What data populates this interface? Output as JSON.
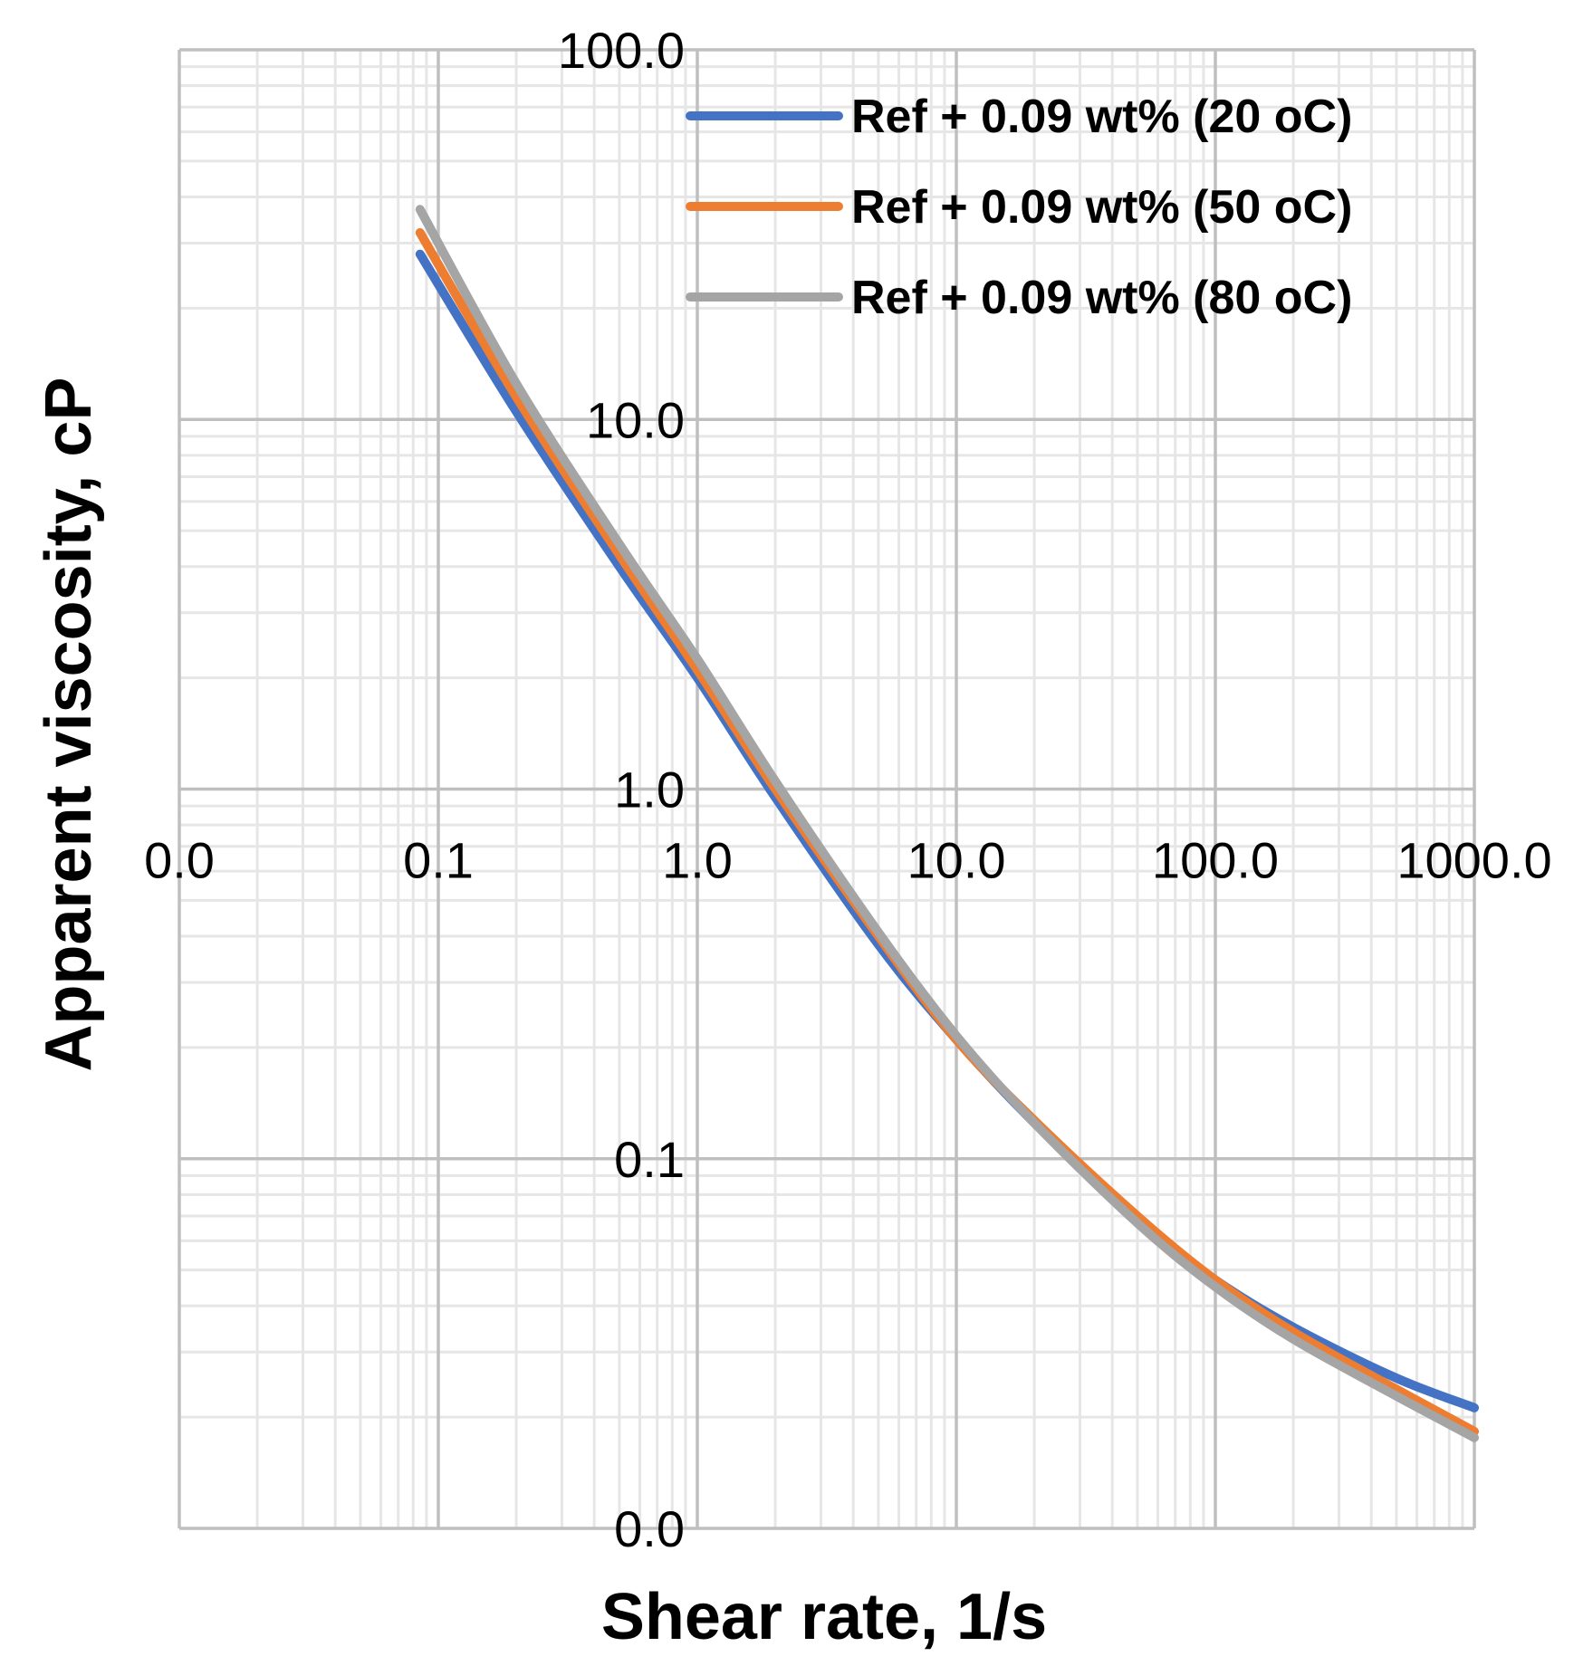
{
  "chart_data": {
    "type": "line",
    "xscale": "log",
    "yscale": "log",
    "xlabel": "Shear rate, 1/s",
    "ylabel": "Apparent viscosity, cP",
    "xlim": [
      0.01,
      1000
    ],
    "ylim": [
      0.01,
      100
    ],
    "x_tick_values": [
      0.01,
      0.1,
      1,
      10,
      100,
      1000
    ],
    "x_tick_labels": [
      "0.0",
      "0.1",
      "1.0",
      "10.0",
      "100.0",
      "1000.0"
    ],
    "y_tick_values": [
      100,
      10,
      1,
      0.1,
      0.01
    ],
    "y_tick_labels": [
      "100.0",
      "10.0",
      "1.0",
      "0.1",
      "0.0"
    ],
    "grid": true,
    "legend_position": "top-right",
    "series": [
      {
        "name": "Ref + 0.09 wt% (20 oC)",
        "color": "#4472C4",
        "x": [
          0.085,
          0.2,
          0.5,
          1.0,
          2.0,
          5.0,
          10.0,
          20.0,
          50.0,
          100.0,
          200.0,
          500.0,
          1000.0
        ],
        "y": [
          28.0,
          10.5,
          4.0,
          2.0,
          0.95,
          0.38,
          0.21,
          0.125,
          0.068,
          0.047,
          0.035,
          0.0255,
          0.0212
        ]
      },
      {
        "name": "Ref + 0.09 wt% (50 oC)",
        "color": "#ED7D31",
        "x": [
          0.085,
          0.2,
          0.5,
          1.0,
          2.0,
          5.0,
          10.0,
          20.0,
          50.0,
          100.0,
          200.0,
          500.0,
          1000.0
        ],
        "y": [
          32.0,
          11.5,
          4.3,
          2.1,
          1.0,
          0.4,
          0.21,
          0.127,
          0.07,
          0.047,
          0.034,
          0.0238,
          0.0183
        ]
      },
      {
        "name": "Ref + 0.09 wt% (80 oC)",
        "color": "#A5A5A5",
        "x": [
          0.085,
          0.2,
          0.5,
          1.0,
          2.0,
          5.0,
          10.0,
          20.0,
          50.0,
          100.0,
          200.0,
          500.0,
          1000.0
        ],
        "y": [
          37.0,
          12.5,
          4.6,
          2.25,
          1.05,
          0.41,
          0.215,
          0.125,
          0.067,
          0.045,
          0.0325,
          0.0228,
          0.0176
        ]
      }
    ]
  }
}
